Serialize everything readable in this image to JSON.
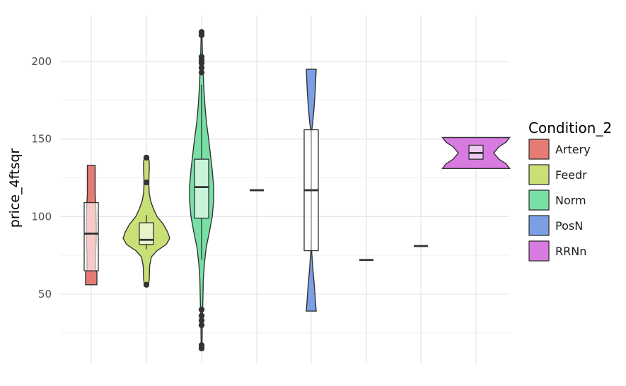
{
  "chart_data": {
    "type": "violin+box",
    "ylabel": "price_4ftsqr",
    "ylim": [
      10,
      225
    ],
    "yticks": [
      50,
      100,
      150,
      200
    ],
    "grid": true,
    "legend": {
      "title": "Condition_2",
      "placement": "right"
    },
    "groups": [
      {
        "name": "Artery",
        "color": "#e57b73",
        "violin_extent": [
          56,
          133
        ],
        "box": {
          "q1": 65,
          "median": 89,
          "q3": 109
        },
        "outliers": []
      },
      {
        "name": "Feedr",
        "color": "#c9e077",
        "violin_extent": [
          56,
          138
        ],
        "box": {
          "q1": 82,
          "median": 85,
          "q3": 96,
          "whisker_low": 79,
          "whisker_high": 101
        },
        "outliers": [
          56,
          122,
          138
        ]
      },
      {
        "name": "Norm",
        "color": "#78e0a5",
        "violin_extent": [
          15,
          219
        ],
        "box": {
          "q1": 99,
          "median": 119,
          "q3": 137,
          "whisker_low": 72,
          "whisker_high": 185
        },
        "outliers": [
          15,
          17,
          30,
          33,
          36,
          40,
          193,
          196,
          199,
          201,
          203,
          217,
          219
        ]
      },
      {
        "name": "Norm",
        "color": "#78e0a5",
        "violin_extent": [
          117,
          117
        ],
        "box": {
          "q1": 117,
          "median": 117,
          "q3": 117
        },
        "outliers": []
      },
      {
        "name": "PosN",
        "color": "#7b9ee5",
        "violin_extent": [
          39,
          195
        ],
        "box": {
          "q1": 78,
          "median": 117,
          "q3": 156
        },
        "outliers": []
      },
      {
        "name": "PosN",
        "color": "#7b9ee5",
        "violin_extent": [
          72,
          72
        ],
        "box": {
          "q1": 72,
          "median": 72,
          "q3": 72
        },
        "outliers": []
      },
      {
        "name": "RRNn",
        "color": "#d77be0",
        "violin_extent": [
          81,
          81
        ],
        "box": {
          "q1": 81,
          "median": 81,
          "q3": 81
        },
        "outliers": []
      },
      {
        "name": "RRNn",
        "color": "#d77be0",
        "violin_extent": [
          131,
          151
        ],
        "box": {
          "q1": 137,
          "median": 141,
          "q3": 146
        },
        "outliers": []
      }
    ]
  }
}
